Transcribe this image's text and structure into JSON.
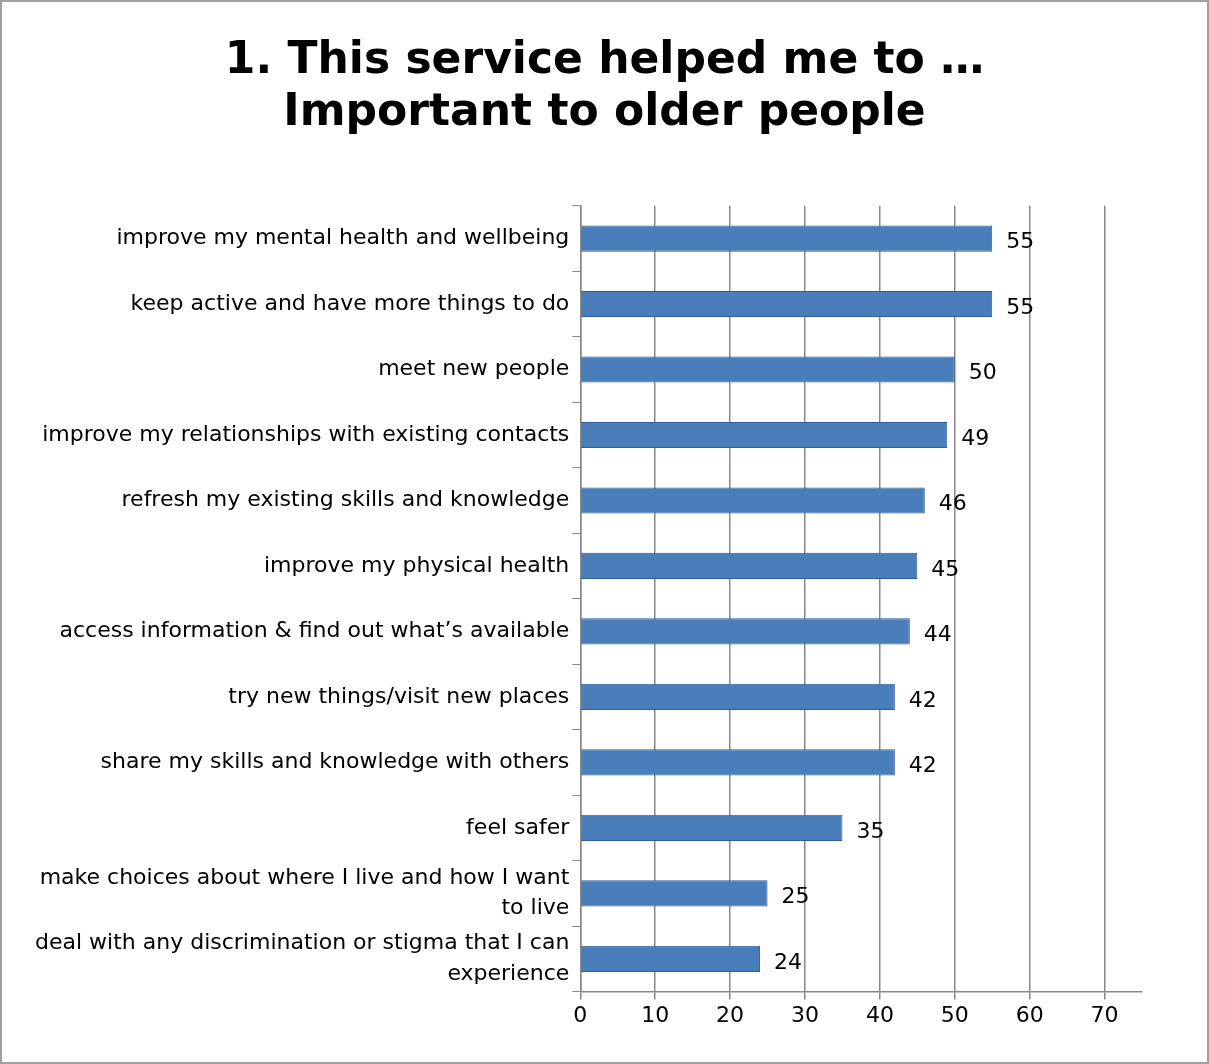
{
  "chart_data": {
    "type": "bar",
    "orientation": "horizontal",
    "title": "1. This service helped me to … Important to older people",
    "categories": [
      "improve my mental health and wellbeing",
      "keep active and have more things to do",
      "meet new people",
      "improve my relationships with existing contacts",
      "refresh my existing skills and knowledge",
      "improve my physical health",
      "access information & find out what’s available",
      "try new things/visit new places",
      "share my skills and knowledge with others",
      "feel safer",
      "make choices about where I live and how I want to live",
      "deal with any discrimination or stigma that I can experience"
    ],
    "values": [
      55,
      55,
      50,
      49,
      46,
      45,
      44,
      42,
      42,
      35,
      25,
      24
    ],
    "color": "#4a7ebb",
    "xlim": [
      0,
      75
    ],
    "xticks": [
      0,
      10,
      20,
      30,
      40,
      50,
      60,
      70
    ],
    "grid": "x",
    "data_labels": true,
    "legend": false
  }
}
